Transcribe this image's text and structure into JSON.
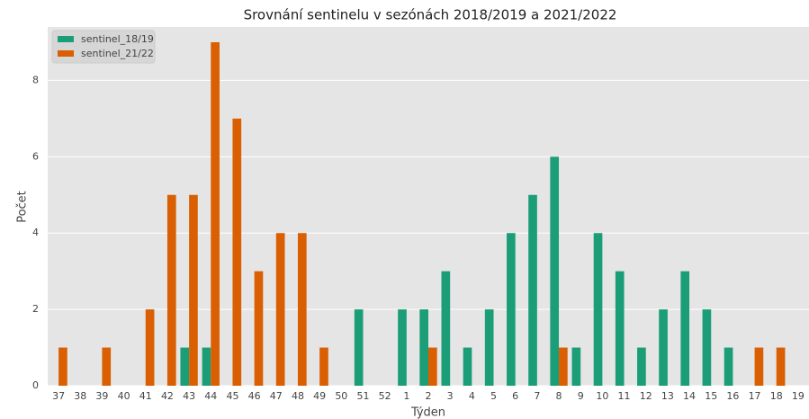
{
  "chart_data": {
    "type": "bar",
    "title": "Srovnání sentinelu v sezónách 2018/2019 a 2021/2022",
    "x_label": "Týden",
    "y_label": "Počet",
    "categories": [
      "37",
      "38",
      "39",
      "40",
      "41",
      "42",
      "43",
      "44",
      "45",
      "46",
      "47",
      "48",
      "49",
      "50",
      "51",
      "52",
      "1",
      "2",
      "3",
      "4",
      "5",
      "6",
      "7",
      "8",
      "9",
      "10",
      "11",
      "12",
      "13",
      "14",
      "15",
      "16",
      "17",
      "18",
      "19"
    ],
    "series": [
      {
        "name": "sentinel_18/19",
        "color": "#1b9e77",
        "values": [
          0,
          0,
          0,
          0,
          0,
          0,
          1,
          1,
          0,
          0,
          0,
          0,
          0,
          0,
          2,
          0,
          2,
          2,
          3,
          1,
          2,
          4,
          5,
          6,
          1,
          4,
          3,
          1,
          2,
          3,
          2,
          1,
          0,
          0,
          0
        ]
      },
      {
        "name": "sentinel_21/22",
        "color": "#d95f02",
        "values": [
          1,
          0,
          1,
          0,
          2,
          5,
          5,
          9,
          7,
          3,
          4,
          4,
          1,
          0,
          0,
          0,
          0,
          1,
          0,
          0,
          0,
          0,
          0,
          1,
          0,
          0,
          0,
          0,
          0,
          0,
          0,
          0,
          1,
          1,
          0
        ]
      }
    ],
    "ylim": [
      0,
      9.4
    ],
    "yticks": [
      0,
      2,
      4,
      6,
      8
    ],
    "grid": true,
    "legend": "upper left"
  }
}
